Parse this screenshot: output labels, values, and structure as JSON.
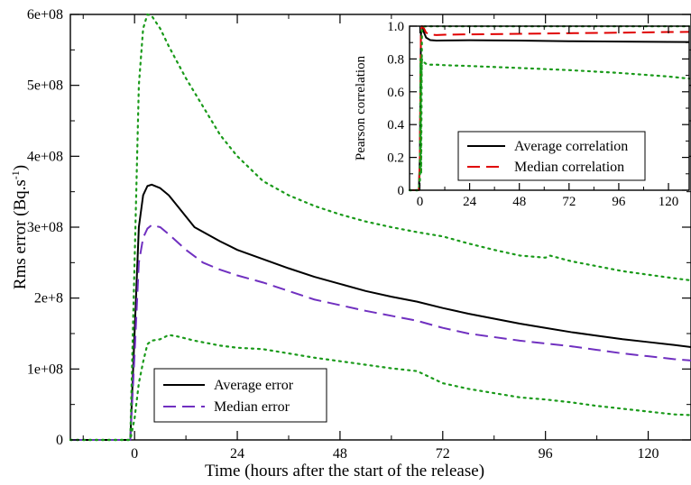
{
  "chart_data": [
    {
      "type": "line",
      "xlabel": "Time (hours after the start of the release)",
      "ylabel": "Rms error (Bq.s",
      "ylabel_sup": "-1",
      "ylabel_close": ")",
      "xlim": [
        -15,
        130
      ],
      "ylim": [
        0,
        600000000
      ],
      "xticks": [
        0,
        24,
        48,
        72,
        96,
        120
      ],
      "xtick_labels": [
        "0",
        "24",
        "48",
        "72",
        "96",
        "120"
      ],
      "yticks": [
        0,
        100000000,
        200000000,
        300000000,
        400000000,
        500000000,
        600000000
      ],
      "ytick_labels": [
        "0",
        "1e+08",
        "2e+8",
        "3e+08",
        "4e+08",
        "5e+08",
        "6e+08"
      ],
      "legend_position": "bottom-left",
      "grid": false,
      "series": [
        {
          "name": "Average error",
          "color": "#000000",
          "style": "solid",
          "x": [
            -15,
            -1,
            0,
            1,
            2,
            3,
            4,
            6,
            8,
            10,
            14,
            20,
            24,
            30,
            36,
            42,
            48,
            54,
            60,
            66,
            72,
            78,
            84,
            90,
            96,
            102,
            108,
            114,
            120,
            126,
            130
          ],
          "y": [
            0,
            0,
            150000000,
            300000000,
            345000000,
            358000000,
            360000000,
            355000000,
            345000000,
            330000000,
            300000000,
            280000000,
            268000000,
            255000000,
            242000000,
            230000000,
            220000000,
            210000000,
            202000000,
            195000000,
            186000000,
            178000000,
            171000000,
            164000000,
            158000000,
            152000000,
            147000000,
            142000000,
            138000000,
            134000000,
            131000000
          ]
        },
        {
          "name": "Median error",
          "color": "#7030c0",
          "style": "dashed",
          "x": [
            -15,
            -1,
            0,
            1,
            2,
            3,
            4,
            6,
            8,
            12,
            16,
            20,
            24,
            30,
            36,
            42,
            48,
            54,
            60,
            66,
            72,
            78,
            84,
            90,
            96,
            102,
            108,
            114,
            120,
            126,
            130
          ],
          "y": [
            0,
            0,
            120000000,
            250000000,
            285000000,
            298000000,
            303000000,
            300000000,
            290000000,
            268000000,
            250000000,
            240000000,
            232000000,
            222000000,
            210000000,
            198000000,
            190000000,
            182000000,
            175000000,
            168000000,
            158000000,
            150000000,
            145000000,
            140000000,
            136000000,
            132000000,
            127000000,
            122000000,
            118000000,
            114000000,
            112000000
          ]
        },
        {
          "color": "#1a9a1a",
          "style": "dotted",
          "x": [
            -15,
            -1,
            0,
            1,
            2,
            3,
            4,
            6,
            8,
            12,
            16,
            20,
            24,
            30,
            36,
            42,
            48,
            54,
            60,
            66,
            69,
            72,
            78,
            84,
            90,
            96,
            97,
            102,
            108,
            114,
            120,
            126,
            130
          ],
          "y": [
            0,
            0,
            250000000,
            500000000,
            580000000,
            600000000,
            598000000,
            580000000,
            555000000,
            510000000,
            470000000,
            430000000,
            400000000,
            365000000,
            345000000,
            330000000,
            318000000,
            308000000,
            300000000,
            293000000,
            290000000,
            287000000,
            277000000,
            268000000,
            260000000,
            257000000,
            260000000,
            252000000,
            245000000,
            238000000,
            233000000,
            228000000,
            225000000
          ]
        },
        {
          "color": "#1a9a1a",
          "style": "dotted",
          "x": [
            -15,
            -1,
            0,
            1,
            2,
            3,
            4,
            6,
            8,
            10,
            14,
            20,
            24,
            30,
            36,
            42,
            48,
            54,
            60,
            66,
            72,
            78,
            84,
            90,
            96,
            102,
            108,
            114,
            120,
            126,
            130
          ],
          "y": [
            0,
            0,
            30000000,
            80000000,
            110000000,
            135000000,
            140000000,
            142000000,
            148000000,
            146000000,
            140000000,
            133000000,
            130000000,
            128000000,
            122000000,
            116000000,
            111000000,
            106000000,
            101000000,
            97000000,
            80000000,
            72000000,
            66000000,
            60000000,
            57000000,
            53000000,
            48000000,
            44000000,
            40000000,
            36000000,
            35000000
          ]
        }
      ]
    },
    {
      "type": "line",
      "ylabel": "Pearson correlation",
      "xlim": [
        -5,
        130
      ],
      "ylim": [
        0,
        1.0
      ],
      "xticks": [
        0,
        24,
        48,
        72,
        96,
        120
      ],
      "xtick_labels": [
        "0",
        "24",
        "48",
        "72",
        "96",
        "120"
      ],
      "yticks": [
        0,
        0.2,
        0.4,
        0.6,
        0.8,
        1.0
      ],
      "ytick_labels": [
        "0",
        "0.2",
        "0.4",
        "0.6",
        "0.8",
        "1.0"
      ],
      "legend_position": "center",
      "grid": false,
      "series": [
        {
          "name": "Average correlation",
          "color": "#000000",
          "style": "solid",
          "x": [
            -5,
            -0.5,
            0,
            0.5,
            1,
            2,
            3,
            5,
            8,
            12,
            24,
            48,
            72,
            96,
            120,
            130
          ],
          "y": [
            0,
            0,
            0.2,
            0.95,
            0.99,
            0.96,
            0.93,
            0.915,
            0.912,
            0.913,
            0.914,
            0.912,
            0.908,
            0.906,
            0.904,
            0.903
          ]
        },
        {
          "name": "Median correlation",
          "color": "#e00000",
          "style": "dashed",
          "x": [
            -5,
            -0.5,
            0,
            0.5,
            1,
            2,
            3,
            5,
            8,
            12,
            24,
            48,
            72,
            96,
            120,
            130
          ],
          "y": [
            0,
            0,
            0.2,
            0.97,
            1.0,
            0.985,
            0.96,
            0.948,
            0.946,
            0.948,
            0.95,
            0.953,
            0.957,
            0.96,
            0.964,
            0.965
          ]
        },
        {
          "color": "#1a9a1a",
          "style": "dotted",
          "x": [
            -5,
            -0.5,
            0,
            0.5,
            1,
            2,
            3,
            5,
            8,
            12,
            24,
            48,
            72,
            96,
            120,
            130
          ],
          "y": [
            0,
            0,
            0.1,
            0.6,
            0.8,
            0.78,
            0.77,
            0.765,
            0.765,
            0.762,
            0.757,
            0.745,
            0.732,
            0.715,
            0.693,
            0.68
          ]
        },
        {
          "color": "#1a9a1a",
          "style": "dotted",
          "x": [
            -5,
            -0.5,
            0,
            0.3,
            0.6,
            1,
            2,
            4,
            8,
            130
          ],
          "y": [
            0,
            0,
            0.05,
            0.8,
            0.1,
            0.99,
            0.998,
            0.999,
            0.999,
            0.999
          ]
        }
      ]
    }
  ]
}
